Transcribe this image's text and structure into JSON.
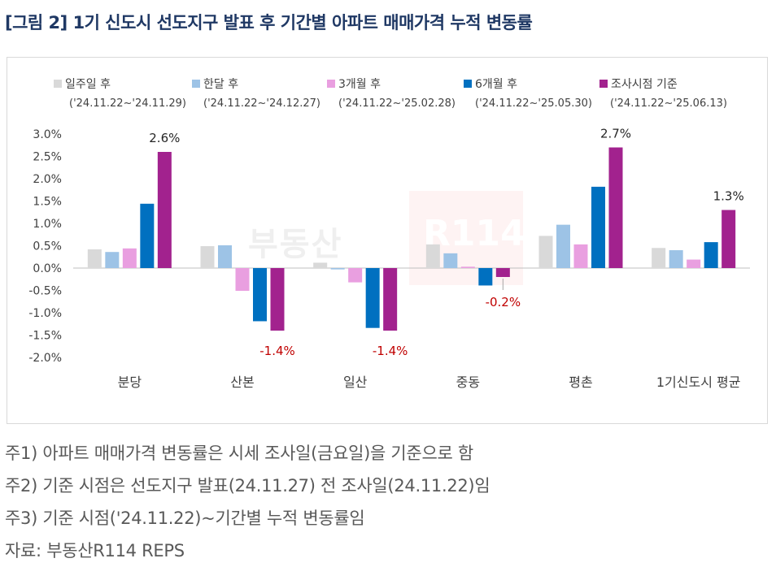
{
  "title": "[그림 2] 1기 신도시 선도지구 발표 후 기간별 아파트 매매가격 누적 변동률",
  "watermark": {
    "text": "부동산",
    "logo": "R114"
  },
  "legend": [
    {
      "label": "일주일 후",
      "range": "('24.11.22~'24.11.29)"
    },
    {
      "label": "한달 후",
      "range": "('24.11.22~'24.12.27)"
    },
    {
      "label": "3개월 후",
      "range": "('24.11.22~'25.02.28)"
    },
    {
      "label": "6개월 후",
      "range": "('24.11.22~'25.05.30)"
    },
    {
      "label": "조사시점 기준",
      "range": "('24.11.22~'25.06.13)"
    }
  ],
  "notes": [
    "주1) 아파트 매매가격 변동률은 시세 조사일(금요일)을 기준으로 함",
    "주2) 기준 시점은 선도지구 발표(24.11.27) 전 조사일(24.11.22)임",
    "주3) 기준 시점('24.11.22)~기간별 누적 변동률임",
    "자료: 부동산R114 REPS"
  ],
  "chart_data": {
    "type": "bar",
    "categories": [
      "분당",
      "산본",
      "일산",
      "중동",
      "평촌",
      "1기신도시 평균"
    ],
    "series": [
      {
        "name": "일주일 후",
        "color": "#d9d9d9",
        "values": [
          0.42,
          0.49,
          0.12,
          0.53,
          0.72,
          0.45
        ]
      },
      {
        "name": "한달 후",
        "color": "#9dc3e6",
        "values": [
          0.36,
          0.51,
          -0.03,
          0.33,
          0.97,
          0.4
        ]
      },
      {
        "name": "3개월 후",
        "color": "#e99fe0",
        "values": [
          0.44,
          -0.51,
          -0.32,
          0.03,
          0.53,
          0.19
        ]
      },
      {
        "name": "6개월 후",
        "color": "#0070c0",
        "values": [
          1.44,
          -1.19,
          -1.34,
          -0.39,
          1.82,
          0.58
        ]
      },
      {
        "name": "조사시점 기준",
        "color": "#a2228e",
        "values": [
          2.6,
          -1.4,
          -1.4,
          -0.2,
          2.7,
          1.3
        ]
      }
    ],
    "data_labels": [
      {
        "category": "분당",
        "series": "조사시점 기준",
        "text": "2.6%",
        "color": "#262626"
      },
      {
        "category": "산본",
        "series": "조사시점 기준",
        "text": "-1.4%",
        "color": "#c00000"
      },
      {
        "category": "일산",
        "series": "조사시점 기준",
        "text": "-1.4%",
        "color": "#c00000"
      },
      {
        "category": "중동",
        "series": "조사시점 기준",
        "text": "-0.2%",
        "color": "#c00000"
      },
      {
        "category": "평촌",
        "series": "조사시점 기준",
        "text": "2.7%",
        "color": "#262626"
      },
      {
        "category": "1기신도시 평균",
        "series": "조사시점 기준",
        "text": "1.3%",
        "color": "#262626"
      }
    ],
    "y_ticks": [
      "3.0%",
      "2.5%",
      "2.0%",
      "1.5%",
      "1.0%",
      "0.5%",
      "0.0%",
      "-0.5%",
      "-1.0%",
      "-1.5%",
      "-2.0%"
    ],
    "ylim": [
      -2.0,
      3.0
    ],
    "grid": false,
    "legend_position": "top"
  }
}
